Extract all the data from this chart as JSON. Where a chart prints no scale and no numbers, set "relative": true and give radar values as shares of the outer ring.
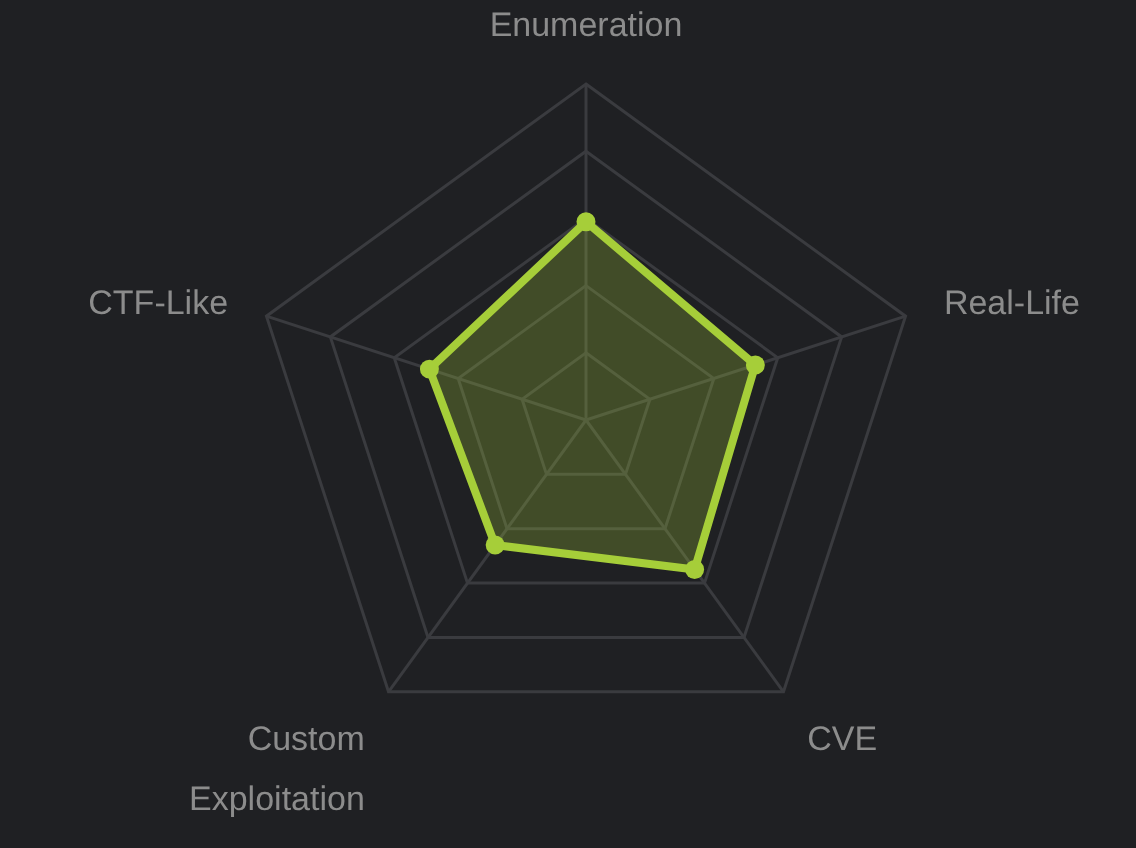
{
  "chart_data": {
    "type": "radar",
    "categories": [
      "Enumeration",
      "Real-Life",
      "CVE",
      "Custom Exploitation",
      "CTF-Like"
    ],
    "relative": true,
    "grid": true,
    "marker": "circle",
    "line_style": "solid",
    "series": [
      {
        "color": "#a6ce39",
        "values": [
          0.59,
          0.53,
          0.55,
          0.46,
          0.49
        ]
      }
    ]
  }
}
